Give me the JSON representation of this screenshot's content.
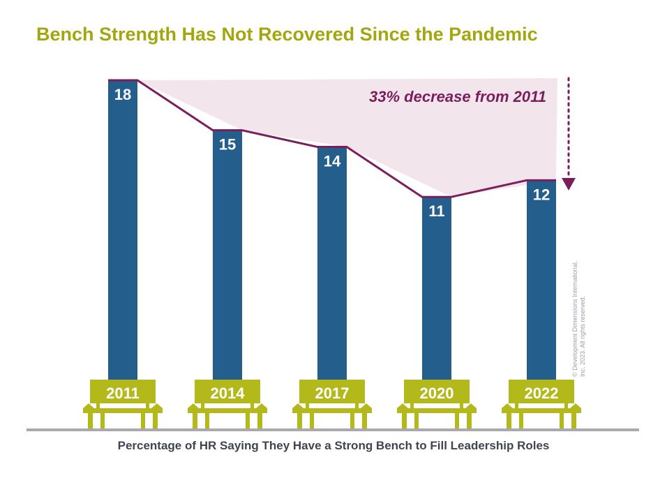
{
  "chart_data": {
    "type": "bar",
    "title": "Bench Strength Has Not Recovered Since the Pandemic",
    "xlabel": "Percentage of HR Saying They Have a Strong Bench to Fill Leadership Roles",
    "ylabel": "",
    "categories": [
      "2011",
      "2014",
      "2017",
      "2020",
      "2022"
    ],
    "values": [
      18,
      15,
      14,
      11,
      12
    ],
    "ylim": [
      0,
      18
    ],
    "grid": false,
    "annotation": "33% decrease from 2011",
    "colors": {
      "bar": "#245e8d",
      "line": "#7a1e5c",
      "fill": "#f2e6ec",
      "bench": "#b3b91a",
      "title": "#a4a60f",
      "floor": "#a9a9ad"
    }
  },
  "copyright_lines": [
    "© Development Dimensions International,",
    "Inc. 2023. All rights reserved."
  ]
}
